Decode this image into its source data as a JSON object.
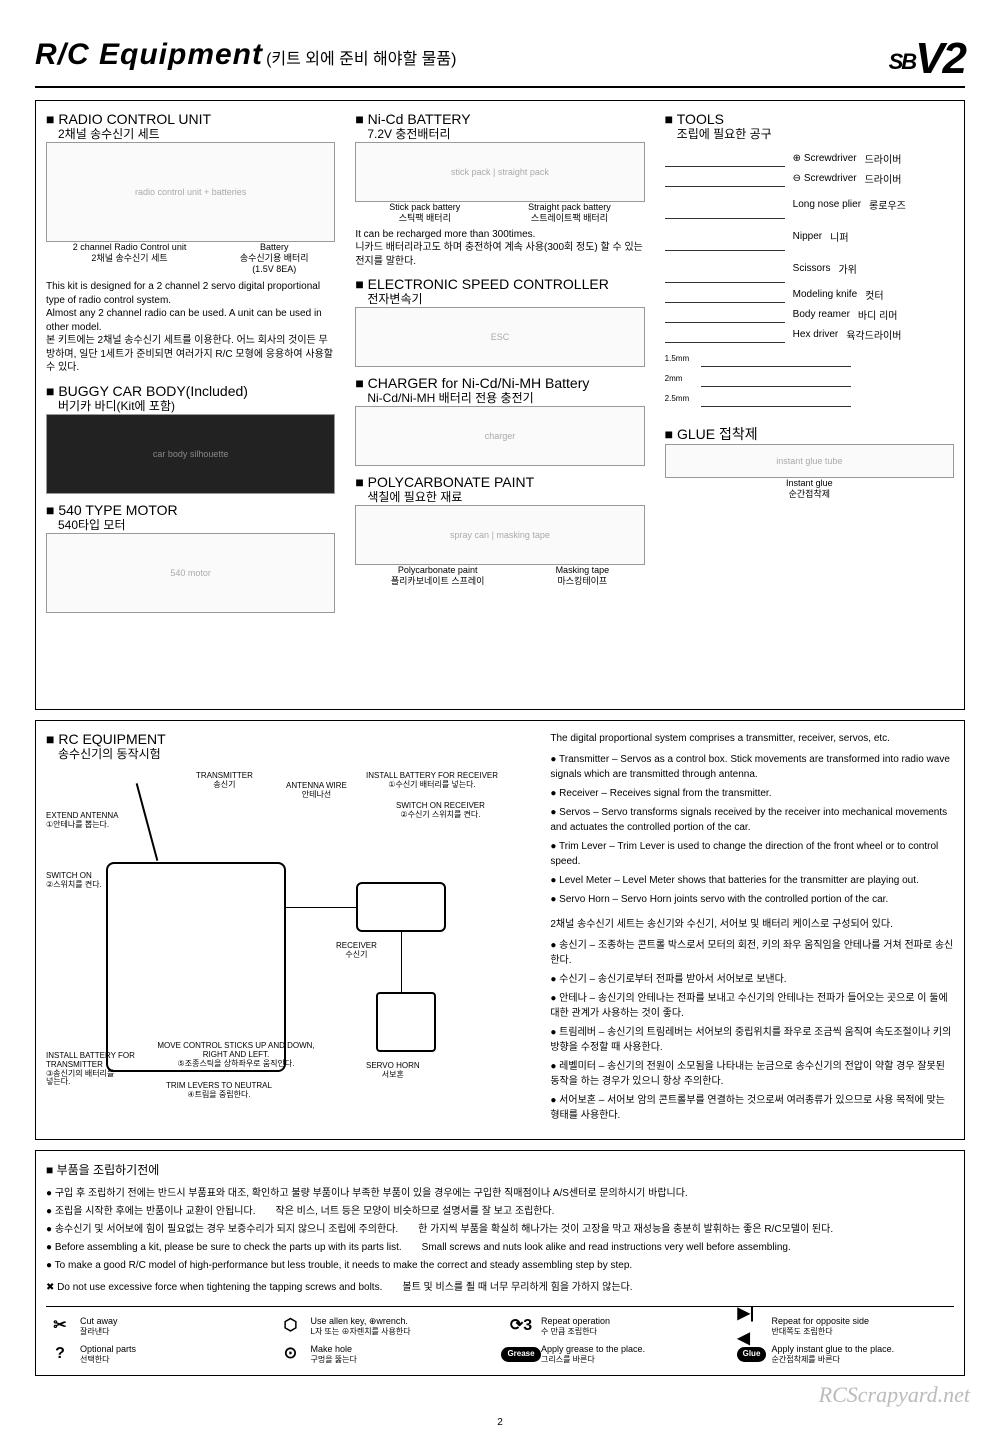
{
  "header": {
    "title": "R/C Equipment",
    "subtitle": "(키트 외에 준비 해야할 물품)",
    "logo_sb": "SB",
    "logo_v2": "V2"
  },
  "col1": {
    "radio": {
      "title": "■ RADIO CONTROL UNIT",
      "sub": "2채널 송수신기 세트",
      "cap1a": "2 channel Radio Control unit",
      "cap1b": "2채널 송수신기 세트",
      "cap2a": "Battery",
      "cap2b": "송수신기용 배터리",
      "cap2c": "(1.5V 8EA)",
      "body": "This kit is designed for a 2 channel 2 servo digital proportional type of radio control system.\nAlmost any 2 channel radio can be used. A unit can be used in other model.\n본 키트에는 2채널 송수신기 세트를 이용한다. 어느 회사의 것이든 무방하며, 일단 1세트가 준비되면 여러가지 R/C 모형에 응용하여 사용할 수 있다."
    },
    "buggy": {
      "title": "■ BUGGY CAR BODY(Included)",
      "sub": "버기카 바디(Kit에 포함)"
    },
    "motor": {
      "title": "■ 540 TYPE MOTOR",
      "sub": "540타입 모터"
    }
  },
  "col2": {
    "battery": {
      "title": "■ Ni-Cd BATTERY",
      "sub": "7.2V 충전배터리",
      "cap1a": "Stick pack battery",
      "cap1b": "스틱팩 배터리",
      "cap2a": "Straight pack battery",
      "cap2b": "스트레이트팩 배터리",
      "body": "It can be recharged more than 300times.\n니카드 배터리라고도 하며 충전하여 계속 사용(300회 정도) 할 수 있는 전지를 말한다."
    },
    "esc": {
      "title": "■ ELECTRONIC SPEED CONTROLLER",
      "sub": "전자변속기"
    },
    "charger": {
      "title": "■ CHARGER for Ni-Cd/Ni-MH Battery",
      "sub": "Ni-Cd/Ni-MH 배터리 전용 충전기"
    },
    "paint": {
      "title": "■ POLYCARBONATE PAINT",
      "sub": "색칠에 필요한 재료",
      "cap1a": "Polycarbonate paint",
      "cap1b": "폴리카보네이트 스프레이",
      "cap2a": "Masking tape",
      "cap2b": "마스킹테이프"
    }
  },
  "col3": {
    "tools": {
      "title": "■ TOOLS",
      "sub": "조립에 필요한 공구",
      "items": [
        {
          "en": "⊕ Screwdriver",
          "kr": "드라이버"
        },
        {
          "en": "⊖ Screwdriver",
          "kr": "드라이버"
        },
        {
          "en": "Long nose plier",
          "kr": "롱로우즈"
        },
        {
          "en": "Nipper",
          "kr": "니퍼"
        },
        {
          "en": "Scissors",
          "kr": "가위"
        },
        {
          "en": "Modeling knife",
          "kr": "컷터"
        },
        {
          "en": "Body reamer",
          "kr": "바디 리머"
        },
        {
          "en": "Hex driver",
          "kr": "육각드라이버"
        }
      ],
      "hex_sizes": [
        "1.5mm",
        "2mm",
        "2.5mm"
      ]
    },
    "glue": {
      "title": "■ GLUE 접착제",
      "cap1a": "Instant glue",
      "cap1b": "순간접착제"
    }
  },
  "rc_equipment": {
    "title": "■ RC EQUIPMENT",
    "sub": "송수신기의 동작시험",
    "labels": {
      "transmitter": "TRANSMITTER\n송신기",
      "extend_antenna": "EXTEND ANTENNA\n①안테나를 뽑는다.",
      "switch_on_tx": "SWITCH ON\n②스위치를 켠다.",
      "install_battery_tx": "INSTALL BATTERY FOR\nTRANSMITTER\n③송신기의 배터리를\n넣는다.",
      "trim_levers": "TRIM LEVERS TO NEUTRAL\n④트림을 중립한다.",
      "move_sticks": "MOVE CONTROL STICKS UP AND DOWN,\nRIGHT AND LEFT.\n⑤조종스틱을 상하좌우로 움직인다.",
      "antenna_wire": "ANTENNA WIRE\n안테나선",
      "install_battery_rx": "INSTALL BATTERY FOR RECEIVER\n①수신기 배터리를 넣는다.",
      "switch_on_rx": "SWITCH ON RECEIVER\n②수신기 스위치를 켠다.",
      "receiver": "RECEIVER\n수신기",
      "servo_horn": "SERVO HORN\n서보혼"
    },
    "desc_intro": "The digital proportional system comprises a transmitter, receiver, servos, etc.",
    "desc_en": [
      "Transmitter – Servos as a control box. Stick movements are transformed into radio wave signals which are transmitted through antenna.",
      "Receiver – Receives signal from the transmitter.",
      "Servos – Servo transforms signals received by the receiver into mechanical movements and actuates the controlled portion of the car.",
      "Trim Lever – Trim Lever is used to change the direction of the front wheel or to control speed.",
      "Level Meter – Level Meter shows that batteries for the transmitter are playing out.",
      "Servo Horn – Servo Horn joints servo with the controlled portion of the car."
    ],
    "desc_kr_intro": "2채널 송수신기 세트는 송신기와 수신기, 서어보 및 배터리 케이스로 구성되어 있다.",
    "desc_kr": [
      "송신기 – 조종하는 콘트롤 박스로서 모터의 회전, 키의 좌우 움직임을 안테나를 거쳐 전파로 송신한다.",
      "수신기 – 송신기로부터 전파를 받아서 서어보로 보낸다.",
      "안테나 – 송신기의 안테나는 전파를 보내고 수신기의 안테나는 전파가 들어오는 곳으로 이 둘에 대한 관계가 사용하는 것이 좋다.",
      "트림레버 – 송신기의 트림레버는 서어보의 중립위치를 좌우로 조금씩 움직여 속도조절이나 키의 방향을 수정할 때 사용한다.",
      "레벨미터 – 송신기의 전원이 소모됨을 나타내는 눈금으로 송수신기의 전압이 약할 경우 잘못된 동작을 하는 경우가 있으니 항상 주의한다.",
      "서어보혼 – 서어보 암의 콘트롤부를 연결하는 것으로써 여러종류가 있으므로 사용 목적에 맞는 형태를 사용한다."
    ]
  },
  "bottom": {
    "title": "■ 부품을 조립하기전에",
    "notes": [
      "구입 후 조립하기 전에는 반드시 부품표와 대조, 확인하고 불량 부품이나 부족한 부품이 있을 경우에는 구입한 직매점이나 A/S센터로 문의하시기 바랍니다.",
      "조립을 시작한 후에는 반품이나 교환이 안됩니다.　　작은 비스, 너트 등은 모양이 비슷하므로 설명서를 잘 보고 조립한다.",
      "송수신기 및 서어보에 힘이 필요없는 경우 보증수리가 되지 않으니 조립에 주의한다.　　한 가지씩 부품을 확실히 해나가는 것이 고장을 막고 재성능을 충분히 발휘하는 좋은 R/C모델이 된다.",
      "Before assembling a kit, please be sure to check the parts up with its parts list.　　Small screws and nuts look alike and read instructions very well before assembling.",
      "To make a good R/C model of high-performance but less trouble, it needs to make the correct and steady assembling step by step."
    ],
    "warn_en": "Do not use excessive force when tightening the tapping screws and bolts.",
    "warn_kr": "볼트 및 비스를 죌 때 너무 무리하게 힘을 가하지 않는다.",
    "legend": [
      {
        "icon": "✂",
        "en": "Cut away",
        "kr": "잘라낸다"
      },
      {
        "icon": "⬡",
        "en": "Use allen key, ⊕wrench.",
        "kr": "L자 또는 ⊕자렌치를 사용한다"
      },
      {
        "icon": "⟳3",
        "en": "Repeat operation",
        "kr": "수 만큼 조립한다"
      },
      {
        "icon": "▶|◀",
        "en": "Repeat for opposite side",
        "kr": "반대쪽도 조립한다"
      },
      {
        "icon": "?",
        "en": "Optional parts",
        "kr": "선택한다"
      },
      {
        "icon": "⊙",
        "en": "Make hole",
        "kr": "구멍을 뚫는다"
      },
      {
        "icon": "Grease",
        "pill": true,
        "en": "Apply grease to the place.",
        "kr": "그리스를 바른다"
      },
      {
        "icon": "Glue",
        "pill": true,
        "en": "Apply instant glue to the place.",
        "kr": "순간접착제를 바른다"
      }
    ]
  },
  "watermark": "RCScrapyard.net",
  "page_number": "2"
}
